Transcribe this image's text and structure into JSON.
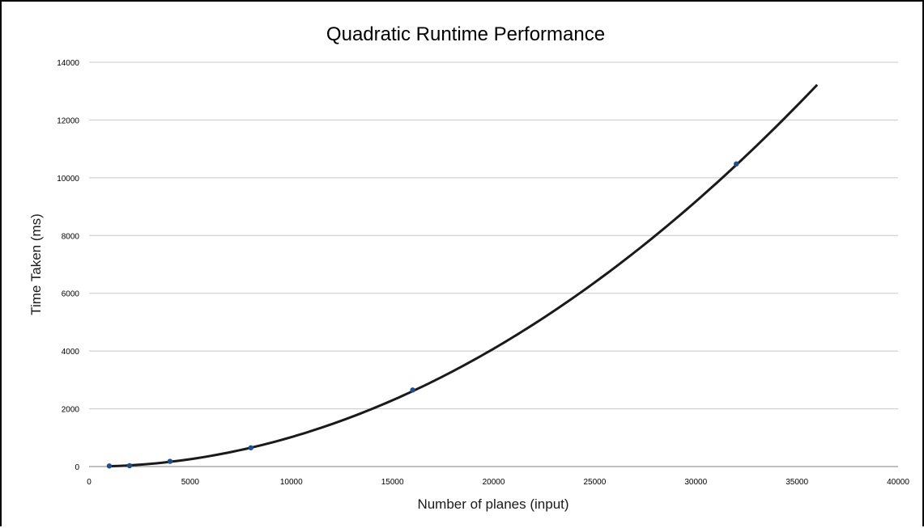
{
  "chart_data": {
    "type": "scatter",
    "title": "Quadratic Runtime Performance",
    "xlabel": "Number of planes (input)",
    "ylabel": "Time Taken (ms)",
    "xlim": [
      0,
      40000
    ],
    "ylim": [
      0,
      14000
    ],
    "x_ticks": [
      0,
      5000,
      10000,
      15000,
      20000,
      25000,
      30000,
      35000,
      40000
    ],
    "y_ticks": [
      0,
      2000,
      4000,
      6000,
      8000,
      10000,
      12000,
      14000
    ],
    "grid": "horizontal",
    "series": [
      {
        "points": [
          {
            "x": 1000,
            "y": 20
          },
          {
            "x": 2000,
            "y": 30
          },
          {
            "x": 4000,
            "y": 180
          },
          {
            "x": 8000,
            "y": 650
          },
          {
            "x": 16000,
            "y": 2650
          },
          {
            "x": 32000,
            "y": 10480
          }
        ],
        "color": "#1f4e8c"
      }
    ],
    "trendline": {
      "type": "polynomial-2",
      "x_range": [
        1000,
        36000
      ],
      "coefficients": [
        1.02e-05,
        0.0,
        0.0
      ],
      "color": "#1a1a1a"
    }
  }
}
